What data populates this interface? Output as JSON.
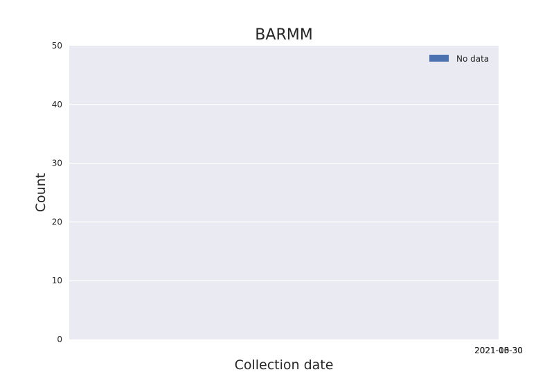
{
  "chart_data": {
    "type": "bar",
    "title": "BARMM",
    "xlabel": "Collection date",
    "ylabel": "Count",
    "ylim": [
      0,
      50
    ],
    "yticks": [
      0,
      10,
      20,
      30,
      40,
      50
    ],
    "xtick_labels": [
      "2021-03-30",
      "2021-10-30",
      "2021-06-30"
    ],
    "grid": true,
    "legend_position": "top-right",
    "series": [
      {
        "name": "No data",
        "color": "#4c72b0",
        "values": []
      }
    ],
    "background_color": "#eaeaf2",
    "grid_color": "#ffffff"
  }
}
